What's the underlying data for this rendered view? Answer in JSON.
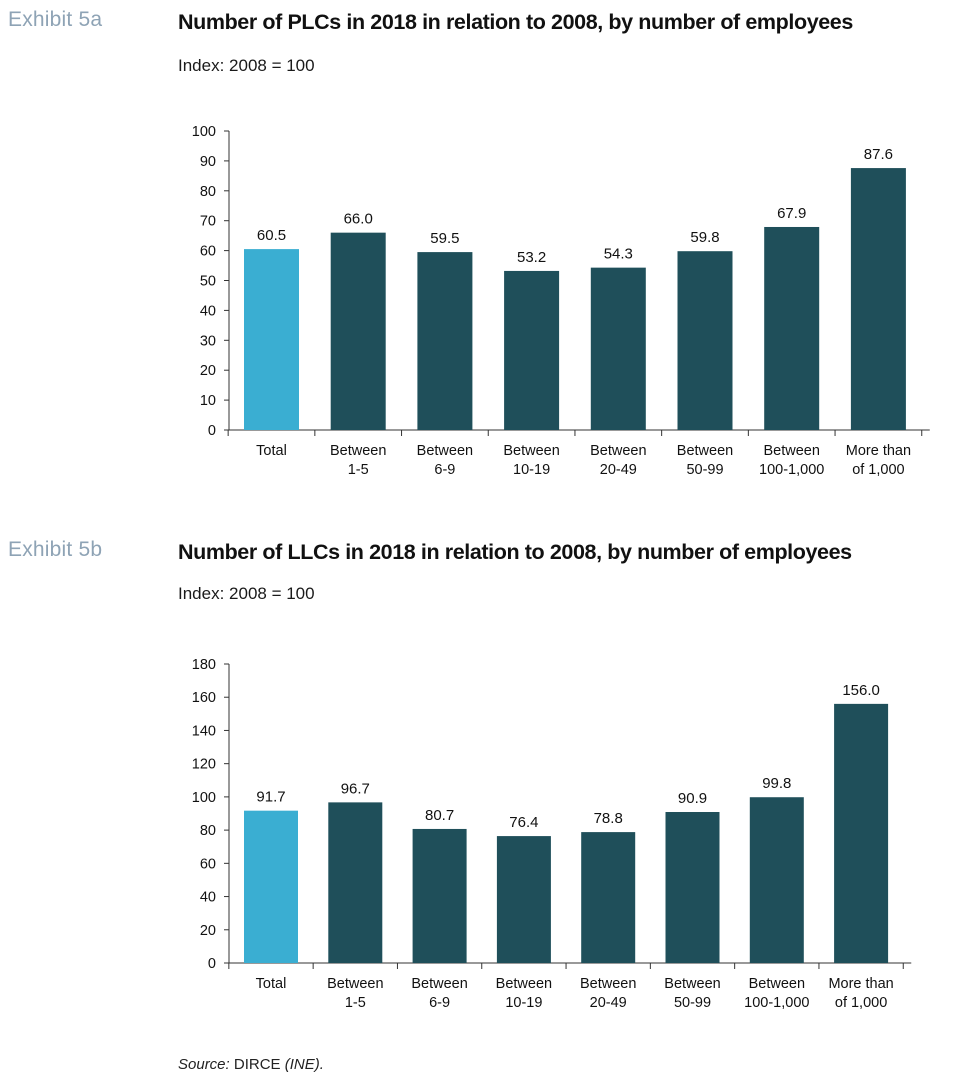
{
  "exhibits": [
    {
      "label": "Exhibit 5a",
      "title": "Number of PLCs in 2018 in relation to 2008, by number of employees",
      "subtitle": "Index: 2008 = 100"
    },
    {
      "label": "Exhibit 5b",
      "title": "Number of LLCs in 2018 in relation to 2008, by number of employees",
      "subtitle": "Index: 2008 = 100"
    }
  ],
  "colors": {
    "highlight": "#3aaed2",
    "bar": "#1f4f5a",
    "axis": "#333333"
  },
  "source": {
    "prefix": "Source:",
    "text": " DIRCE ",
    "suffix": "(INE)."
  },
  "chart_data": [
    {
      "type": "bar",
      "categories": [
        [
          "Total"
        ],
        [
          "Between",
          "1-5"
        ],
        [
          "Between",
          "6-9"
        ],
        [
          "Between",
          "10-19"
        ],
        [
          "Between",
          "20-49"
        ],
        [
          "Between",
          "50-99"
        ],
        [
          "Between",
          "100-1,000"
        ],
        [
          "More than",
          "of 1,000"
        ]
      ],
      "values": [
        60.5,
        66.0,
        59.5,
        53.2,
        54.3,
        59.8,
        67.9,
        87.6
      ],
      "value_labels": [
        "60.5",
        "66.0",
        "59.5",
        "53.2",
        "54.3",
        "59.8",
        "67.9",
        "87.6"
      ],
      "highlight_index": 0,
      "ylim": [
        0,
        100
      ],
      "yticks": [
        0,
        10,
        20,
        30,
        40,
        50,
        60,
        70,
        80,
        90,
        100
      ],
      "grid": false
    },
    {
      "type": "bar",
      "categories": [
        [
          "Total"
        ],
        [
          "Between",
          "1-5"
        ],
        [
          "Between",
          "6-9"
        ],
        [
          "Between",
          "10-19"
        ],
        [
          "Between",
          "20-49"
        ],
        [
          "Between",
          "50-99"
        ],
        [
          "Between",
          "100-1,000"
        ],
        [
          "More than",
          "of 1,000"
        ]
      ],
      "values": [
        91.7,
        96.7,
        80.7,
        76.4,
        78.8,
        90.9,
        99.8,
        156.0
      ],
      "value_labels": [
        "91.7",
        "96.7",
        "80.7",
        "76.4",
        "78.8",
        "90.9",
        "99.8",
        "156.0"
      ],
      "highlight_index": 0,
      "ylim": [
        0,
        180
      ],
      "yticks": [
        0,
        20,
        40,
        60,
        80,
        100,
        120,
        140,
        160,
        180
      ],
      "grid": false
    }
  ]
}
